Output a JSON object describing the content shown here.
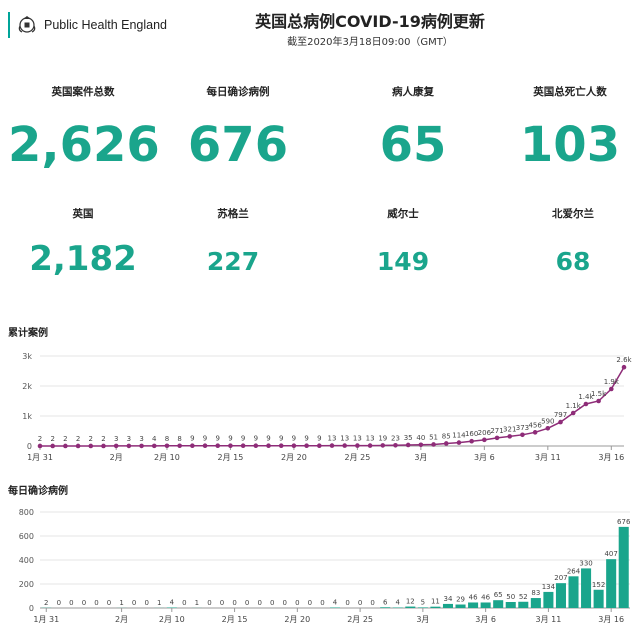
{
  "header": {
    "org": "Public Health England",
    "title": "英国总病例COVID-19病例更新",
    "subtitle": "截至2020年3月18日09:00（GMT）"
  },
  "stats_top": [
    {
      "label": "英国案件总数",
      "value": "2,626"
    },
    {
      "label": "每日确诊病例",
      "value": "676"
    },
    {
      "label": "病人康复",
      "value": "65"
    },
    {
      "label": "英国总死亡人数",
      "value": "103"
    }
  ],
  "stats_bottom": [
    {
      "label": "英国",
      "value": "2,182"
    },
    {
      "label": "苏格兰",
      "value": "227"
    },
    {
      "label": "威尔士",
      "value": "149"
    },
    {
      "label": "北爱尔兰",
      "value": "68"
    }
  ],
  "colors": {
    "accent": "#1aa58c",
    "line": "#8e2c78",
    "bar": "#1aa58c"
  },
  "chart_data": [
    {
      "type": "line",
      "title": "累计案例",
      "ylim": [
        0,
        3000
      ],
      "y_ticks": [
        {
          "v": 0,
          "t": "0"
        },
        {
          "v": 1000,
          "t": "1k"
        },
        {
          "v": 2000,
          "t": "2k"
        },
        {
          "v": 3000,
          "t": "3k"
        }
      ],
      "x_ticks": [
        {
          "i": 0,
          "t": "1月 31"
        },
        {
          "i": 6,
          "t": "2月"
        },
        {
          "i": 10,
          "t": "2月 10"
        },
        {
          "i": 15,
          "t": "2月 15"
        },
        {
          "i": 20,
          "t": "2月 20"
        },
        {
          "i": 25,
          "t": "2月 25"
        },
        {
          "i": 30,
          "t": "3月"
        },
        {
          "i": 35,
          "t": "3月 6"
        },
        {
          "i": 40,
          "t": "3月 11"
        },
        {
          "i": 45,
          "t": "3月 16"
        }
      ],
      "values": [
        2,
        2,
        2,
        2,
        2,
        2,
        3,
        3,
        3,
        4,
        8,
        8,
        9,
        9,
        9,
        9,
        9,
        9,
        9,
        9,
        9,
        9,
        9,
        13,
        13,
        13,
        13,
        19,
        23,
        35,
        40,
        51,
        85,
        114,
        160,
        206,
        271,
        321,
        373,
        456,
        590,
        797,
        1100,
        1400,
        1500,
        1900,
        2626
      ],
      "labels": [
        "2",
        "2",
        "2",
        "2",
        "2",
        "2",
        "3",
        "3",
        "3",
        "4",
        "8",
        "8",
        "9",
        "9",
        "9",
        "9",
        "9",
        "9",
        "9",
        "9",
        "9",
        "9",
        "9",
        "13",
        "13",
        "13",
        "13",
        "19",
        "23",
        "35",
        "40",
        "51",
        "85",
        "114",
        "160",
        "206",
        "271",
        "321",
        "373",
        "456",
        "590",
        "797",
        "1.1k",
        "1.4k",
        "1.5k",
        "1.9k",
        "2.6k"
      ]
    },
    {
      "type": "bar",
      "title": "每日确诊病例",
      "ylim": [
        0,
        800
      ],
      "y_ticks": [
        {
          "v": 0,
          "t": "0"
        },
        {
          "v": 200,
          "t": "200"
        },
        {
          "v": 400,
          "t": "400"
        },
        {
          "v": 600,
          "t": "600"
        },
        {
          "v": 800,
          "t": "800"
        }
      ],
      "x_ticks": [
        {
          "i": 0,
          "t": "1月 31"
        },
        {
          "i": 6,
          "t": "2月"
        },
        {
          "i": 10,
          "t": "2月 10"
        },
        {
          "i": 15,
          "t": "2月 15"
        },
        {
          "i": 20,
          "t": "2月 20"
        },
        {
          "i": 25,
          "t": "2月 25"
        },
        {
          "i": 30,
          "t": "3月"
        },
        {
          "i": 35,
          "t": "3月 6"
        },
        {
          "i": 40,
          "t": "3月 11"
        },
        {
          "i": 45,
          "t": "3月 16"
        }
      ],
      "values": [
        2,
        0,
        0,
        0,
        0,
        0,
        1,
        0,
        0,
        1,
        4,
        0,
        1,
        0,
        0,
        0,
        0,
        0,
        0,
        0,
        0,
        0,
        0,
        4,
        0,
        0,
        0,
        6,
        4,
        12,
        5,
        11,
        34,
        29,
        46,
        46,
        65,
        50,
        52,
        83,
        134,
        207,
        264,
        330,
        152,
        407,
        676
      ]
    }
  ]
}
